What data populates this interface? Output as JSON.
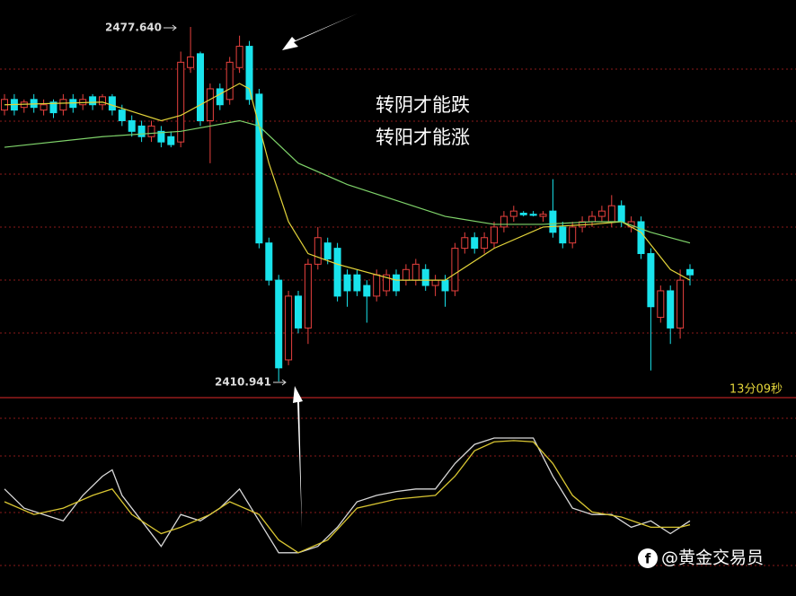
{
  "chart_data": {
    "type": "candlestick",
    "high_label": "2477.640",
    "low_label": "2410.941",
    "annotations": [
      "转阴才能跌",
      "转阳才能涨"
    ],
    "timer": "13分09秒",
    "watermark": "@黄金交易员",
    "ylim": [
      2407.9,
      2482.71
    ],
    "up_color": "#e8413e",
    "down_color": "#19e3ec",
    "open": [
      2462,
      2464,
      2462.5,
      2464,
      2462,
      2463.5,
      2462,
      2464,
      2463,
      2464.5,
      2463,
      2464.5,
      2462,
      2460,
      2459,
      2457,
      2458,
      2457,
      2456,
      2470,
      2472.6,
      2460,
      2466,
      2464,
      2470,
      2474,
      2465,
      2437,
      2430,
      2415,
      2427,
      2421,
      2433,
      2437,
      2436,
      2431,
      2431,
      2429,
      2427,
      2428,
      2431,
      2430,
      2430,
      2432,
      2429,
      2430,
      2428,
      2436,
      2438,
      2436,
      2437,
      2440,
      2442,
      2442.6,
      2442.4,
      2442,
      2443,
      2440,
      2437,
      2440,
      2441,
      2442,
      2441,
      2444,
      2440,
      2441,
      2435,
      2423,
      2428,
      2421,
      2432
    ],
    "high": [
      2465,
      2465,
      2464,
      2465,
      2464,
      2464,
      2465,
      2465,
      2465,
      2465,
      2465,
      2465,
      2463,
      2461,
      2460,
      2460,
      2459,
      2458,
      2473,
      2477.64,
      2473,
      2467,
      2467,
      2472,
      2476,
      2475,
      2466,
      2438,
      2431,
      2428,
      2428,
      2434,
      2440,
      2438,
      2437,
      2432,
      2432,
      2430,
      2432,
      2432,
      2432,
      2433,
      2434,
      2433,
      2431,
      2431,
      2437,
      2439,
      2439,
      2439,
      2441,
      2443,
      2444,
      2443,
      2443,
      2443,
      2449,
      2441,
      2441,
      2442,
      2443,
      2444,
      2446,
      2445,
      2442,
      2442,
      2436,
      2429,
      2429,
      2432,
      2433
    ],
    "low": [
      2461,
      2461,
      2461.5,
      2461.5,
      2461,
      2460.5,
      2461,
      2461.5,
      2462,
      2462,
      2462,
      2461,
      2459,
      2457,
      2456,
      2456,
      2455,
      2455,
      2455,
      2469,
      2459,
      2452,
      2462,
      2463,
      2469,
      2463,
      2436,
      2429,
      2410.941,
      2414,
      2420,
      2418,
      2432,
      2433,
      2426,
      2425,
      2427,
      2422,
      2426,
      2427,
      2427,
      2429,
      2429,
      2428,
      2427,
      2425,
      2427,
      2435,
      2435,
      2435,
      2436,
      2439,
      2441,
      2442,
      2442,
      2441,
      2438,
      2436,
      2436,
      2439,
      2440,
      2441,
      2440,
      2440,
      2439,
      2434,
      2413,
      2422,
      2418,
      2419,
      2429
    ],
    "close": [
      2464,
      2462,
      2463.5,
      2462.5,
      2463,
      2461.5,
      2464,
      2462.5,
      2464,
      2463,
      2464.5,
      2462,
      2460,
      2458,
      2457,
      2459,
      2456,
      2455.5,
      2471,
      2472,
      2460,
      2466,
      2463,
      2471,
      2474,
      2464,
      2437,
      2430,
      2413.5,
      2427,
      2421,
      2433,
      2438,
      2434,
      2427,
      2428,
      2428,
      2427,
      2431,
      2431,
      2428,
      2432,
      2433,
      2429,
      2430,
      2428,
      2436,
      2438,
      2436,
      2438,
      2440,
      2442,
      2443,
      2442.3,
      2442.2,
      2442.4,
      2439,
      2437,
      2440,
      2441,
      2442,
      2443,
      2444,
      2441,
      2441,
      2435,
      2425,
      2428,
      2421,
      2430,
      2431
    ],
    "ma": [
      {
        "color": "#e3d43a",
        "x": [
          0,
          10,
          16,
          18,
          20,
          24,
          25,
          27,
          29,
          31,
          34,
          40,
          45,
          50,
          55,
          60,
          63,
          65,
          68,
          70
        ],
        "values": [
          2463,
          2463.5,
          2460,
          2461,
          2463,
          2467,
          2466,
          2452,
          2441,
          2435,
          2433,
          2430,
          2430,
          2436,
          2440,
          2440.5,
          2441,
          2439,
          2432,
          2430
        ]
      },
      {
        "color": "#7fd36a",
        "x": [
          0,
          10,
          18,
          24,
          26,
          30,
          35,
          40,
          45,
          50,
          55,
          60,
          63,
          66,
          70
        ],
        "values": [
          2455,
          2457,
          2458,
          2460,
          2459,
          2452,
          2448,
          2445,
          2442,
          2440.5,
          2440.5,
          2441,
          2441,
          2439,
          2437
        ]
      }
    ],
    "oscillator": {
      "ylim": [
        0,
        100
      ],
      "series": [
        {
          "color": "#d8d8d8",
          "x": [
            0,
            2,
            4,
            6,
            8,
            10,
            11,
            12,
            14,
            16,
            18,
            20,
            22,
            24,
            26,
            28,
            30,
            32,
            34,
            36,
            38,
            40,
            42,
            44,
            46,
            48,
            50,
            52,
            54,
            56,
            58,
            60,
            62,
            64,
            66,
            68,
            70
          ],
          "values": [
            60,
            45,
            40,
            35,
            55,
            70,
            75,
            55,
            35,
            15,
            40,
            35,
            45,
            60,
            35,
            10,
            10,
            15,
            30,
            50,
            55,
            58,
            60,
            60,
            80,
            95,
            100,
            100,
            100,
            70,
            45,
            40,
            40,
            30,
            35,
            25,
            35
          ]
        },
        {
          "color": "#d9c632",
          "x": [
            0,
            3,
            6,
            9,
            11,
            13,
            16,
            18,
            21,
            23,
            26,
            28,
            30,
            33,
            36,
            40,
            44,
            46,
            48,
            50,
            52,
            54,
            56,
            58,
            60,
            63,
            66,
            69,
            70
          ],
          "values": [
            50,
            40,
            45,
            55,
            60,
            40,
            25,
            30,
            40,
            50,
            40,
            20,
            10,
            20,
            45,
            52,
            55,
            70,
            90,
            97,
            98,
            97,
            80,
            55,
            42,
            38,
            30,
            30,
            32
          ]
        }
      ]
    }
  }
}
